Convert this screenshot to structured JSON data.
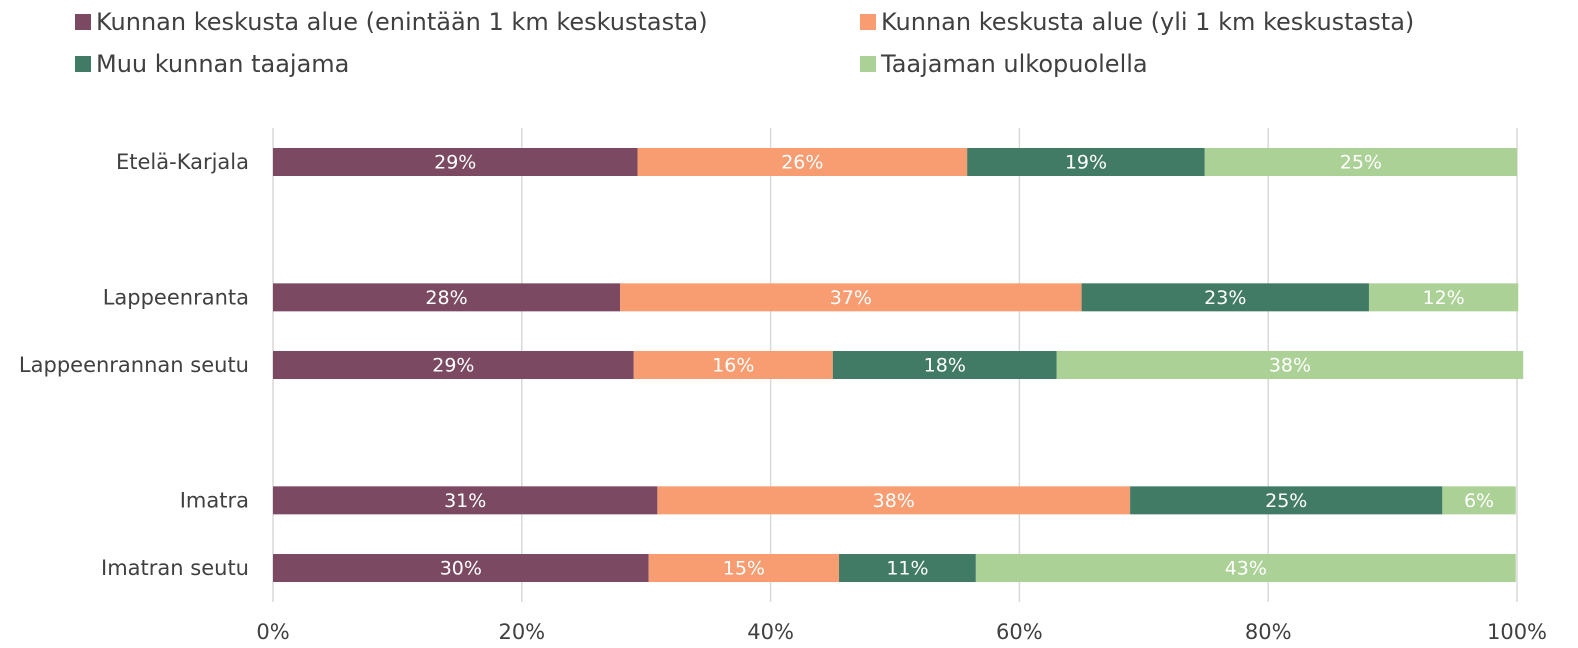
{
  "chart_data": {
    "type": "stacked-barh",
    "categories": [
      "Etelä-Karjala",
      null,
      "Lappeenranta",
      "Lappeenrannan seutu",
      null,
      "Imatra",
      "Imatran seutu"
    ],
    "series": [
      {
        "name": "Kunnan keskusta alue (enintään 1 km keskustasta)",
        "color": "#7b4a62",
        "values": [
          29.3,
          null,
          27.9,
          29.0,
          null,
          30.9,
          30.2
        ],
        "value_labels": [
          "29%",
          null,
          "28%",
          "29%",
          null,
          "31%",
          "30%"
        ]
      },
      {
        "name": "Kunnan keskusta alue (yli 1 km keskustasta)",
        "color": "#f89c72",
        "values": [
          26.5,
          null,
          37.1,
          16.0,
          null,
          38.0,
          15.3
        ],
        "value_labels": [
          "26%",
          null,
          "37%",
          "16%",
          null,
          "38%",
          "15%"
        ]
      },
      {
        "name": "Muu kunnan taajama",
        "color": "#417b66",
        "values": [
          19.1,
          null,
          23.1,
          18.0,
          null,
          25.1,
          11.0
        ],
        "value_labels": [
          "19%",
          null,
          "23%",
          "18%",
          null,
          "25%",
          "11%"
        ]
      },
      {
        "name": "Taajaman ulkopuolella",
        "color": "#acd196",
        "values": [
          25.1,
          null,
          12.0,
          37.5,
          null,
          5.9,
          43.4
        ],
        "value_labels": [
          "25%",
          null,
          "12%",
          "38%",
          null,
          "6%",
          "43%"
        ]
      }
    ],
    "xlim": [
      0,
      100
    ],
    "xticks": [
      {
        "value": 0,
        "label": "0%"
      },
      {
        "value": 20,
        "label": "20%"
      },
      {
        "value": 40,
        "label": "40%"
      },
      {
        "value": 60,
        "label": "60%"
      },
      {
        "value": 80,
        "label": "80%"
      },
      {
        "value": 100,
        "label": "100%"
      }
    ],
    "grid": true,
    "legend": "top"
  }
}
